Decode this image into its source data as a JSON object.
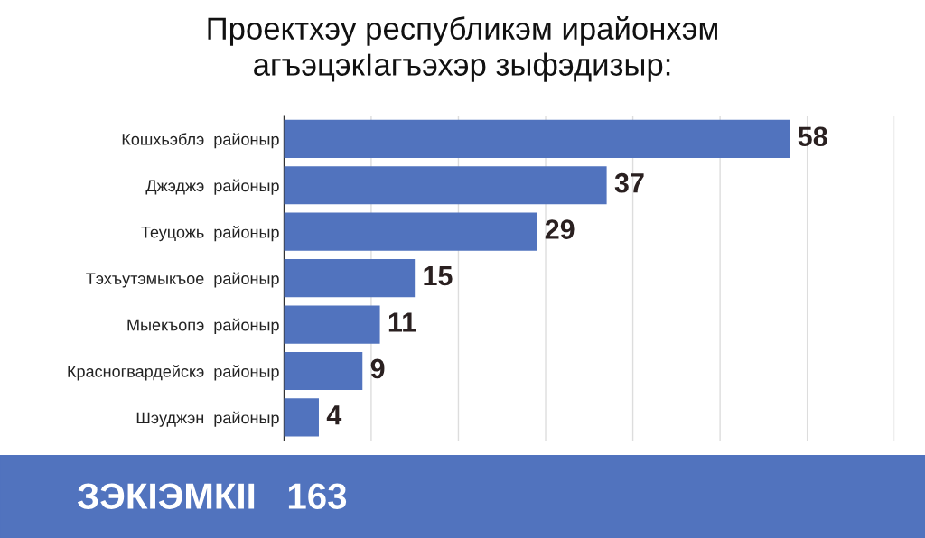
{
  "chart_data": {
    "type": "bar",
    "orientation": "horizontal",
    "title": "Проектхэу республикэм ирайонхэм\nагъэцэкІагъэхэр зыфэдизыр:",
    "categories": [
      "Кошхьэблэ  районыр",
      "Джэджэ  районыр",
      "Теуцожь  районыр",
      "Тэхъутэмыкъое  районыр",
      "Мыекъопэ  районыр",
      "Красногвардейскэ  районыр",
      "Шэуджэн  районыр"
    ],
    "values": [
      58,
      37,
      29,
      15,
      11,
      9,
      4
    ],
    "color": "#5173be",
    "data_labels": true,
    "xlim": [
      0,
      70
    ],
    "xticks": [
      {
        "value": 0,
        "label": null
      },
      {
        "value": 10,
        "label": null
      },
      {
        "value": 20,
        "label": null
      },
      {
        "value": 30,
        "label": null
      },
      {
        "value": 40,
        "label": null
      },
      {
        "value": 50,
        "label": null
      },
      {
        "value": 60,
        "label": null
      },
      {
        "value": 70,
        "label": null
      }
    ],
    "grid": "x",
    "annotations": [
      "ЗЭКІЭМКІІ   163"
    ]
  }
}
